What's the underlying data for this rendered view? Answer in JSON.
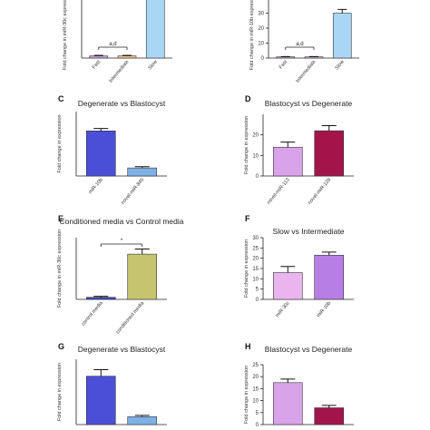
{
  "chart_data": [
    {
      "id": "A",
      "panel_label": "",
      "type": "bar",
      "title": "",
      "ylabel": "Fold change in miR-30c expression",
      "categories": [
        "Fast",
        "Intermediate",
        "Slow"
      ],
      "values": [
        0.8,
        0.8,
        30
      ],
      "errors": [
        0.2,
        0.2,
        2
      ],
      "colors": [
        "#c9a0dc",
        "#f2c48a",
        "#a9d6f5"
      ],
      "ylim": [
        0,
        30
      ],
      "yticks": [],
      "annotation": "a,d"
    },
    {
      "id": "B",
      "panel_label": "",
      "type": "bar",
      "title": "",
      "ylabel": "Fold change in miR-10b expression",
      "categories": [
        "Fast",
        "Intermediate",
        "Slow"
      ],
      "values": [
        0.8,
        0.8,
        30
      ],
      "errors": [
        0.2,
        0.2,
        2.5
      ],
      "colors": [
        "#c9a0dc",
        "#d8b4e2",
        "#a9d6f5"
      ],
      "ylim": [
        0,
        40
      ],
      "yticks": [
        0,
        10,
        20,
        30
      ],
      "annotation": "a,d"
    },
    {
      "id": "C",
      "panel_label": "C",
      "type": "bar",
      "title": "Degenerate vs Blastocyst",
      "ylabel": "Fold change in expression",
      "categories": [
        "miR-10b",
        "novel-miR-845"
      ],
      "values": [
        56,
        10
      ],
      "errors": [
        3,
        1.5
      ],
      "colors": [
        "#4b4fd8",
        "#7fb0e8"
      ],
      "ylim": [
        0,
        80
      ],
      "yticks": [],
      "annotation": ""
    },
    {
      "id": "D",
      "panel_label": "D",
      "type": "bar",
      "title": "Blastocyst vs Degenerate",
      "ylabel": "Fold change in expression",
      "categories": [
        "novel-miR-113",
        "novel-miR-128"
      ],
      "values": [
        14,
        22
      ],
      "errors": [
        2.5,
        2.5
      ],
      "colors": [
        "#d9a3ea",
        "#a3154a"
      ],
      "ylim": [
        0,
        30
      ],
      "yticks": [
        0,
        10,
        20
      ],
      "annotation": ""
    },
    {
      "id": "E",
      "panel_label": "E",
      "type": "bar",
      "title": "Conditioned media vs Control media",
      "ylabel": "Fold change in miR-30c expression",
      "categories": [
        "control media",
        "conditioned media"
      ],
      "values": [
        1,
        22
      ],
      "errors": [
        0.5,
        2.5
      ],
      "colors": [
        "#3e43c9",
        "#c6c46e"
      ],
      "ylim": [
        0,
        30
      ],
      "yticks": [],
      "annotation": "*"
    },
    {
      "id": "F",
      "panel_label": "F",
      "type": "bar",
      "title": "Slow vs Intermediate",
      "ylabel": "Fold change in expression",
      "categories": [
        "miR-30c",
        "miR-10b"
      ],
      "values": [
        13,
        21.5
      ],
      "errors": [
        3,
        1.5
      ],
      "colors": [
        "#eab5ef",
        "#b77ee6"
      ],
      "ylim": [
        0,
        30
      ],
      "yticks": [
        0,
        5,
        10,
        15,
        20,
        25,
        30
      ],
      "annotation": ""
    },
    {
      "id": "G",
      "panel_label": "G",
      "type": "bar",
      "title": "Degenerate vs Blastocyst",
      "ylabel": "Fold change in expression",
      "categories": [
        "",
        ""
      ],
      "values": [
        37,
        6
      ],
      "errors": [
        5,
        1
      ],
      "colors": [
        "#4b4fd8",
        "#7fb0e8"
      ],
      "ylim": [
        0,
        50
      ],
      "yticks": [],
      "annotation": ""
    },
    {
      "id": "H",
      "panel_label": "H",
      "type": "bar",
      "title": "Blastocyst vs Degenerate",
      "ylabel": "Fold change in expression",
      "categories": [
        "",
        ""
      ],
      "values": [
        17.5,
        7
      ],
      "errors": [
        1.5,
        1
      ],
      "colors": [
        "#d9a3ea",
        "#a3154a"
      ],
      "ylim": [
        0,
        25
      ],
      "yticks": [
        0,
        5,
        10,
        15,
        20,
        25
      ],
      "annotation": ""
    }
  ]
}
